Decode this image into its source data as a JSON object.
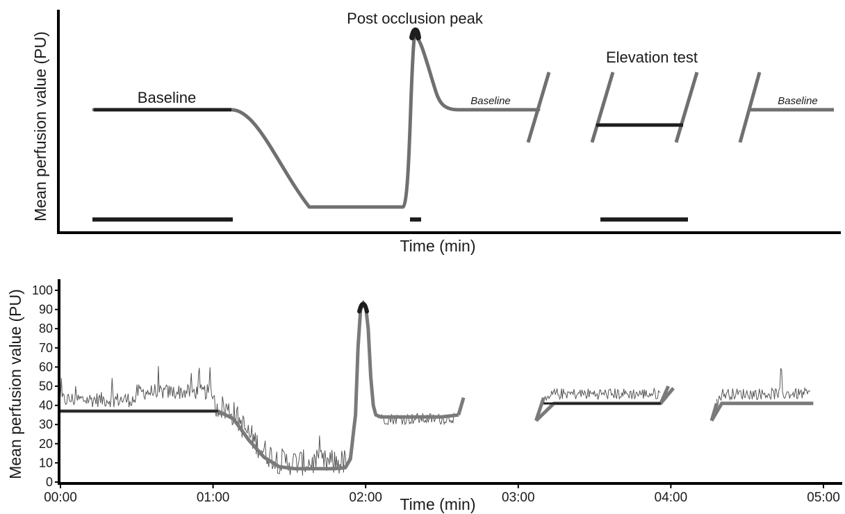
{
  "chart_data": [
    {
      "type": "line",
      "xlabel": "Time (min)",
      "ylabel": "Mean perfusion value (PU)",
      "annotations": {
        "baseline_main": "Baseline",
        "post_occlusion": "Post occlusion peak",
        "baseline_after_peak": "Baseline",
        "elevation": "Elevation test",
        "baseline_final": "Baseline"
      },
      "grid": false,
      "series": [
        {
          "values": []
        }
      ],
      "line_color": "#707070",
      "highlight_color": "#1e1e1e"
    },
    {
      "type": "line",
      "xlabel": "Time (min)",
      "ylabel": "Mean perfusion value (PU)",
      "x_tick_labels": [
        "00:00",
        "01:00",
        "02:00",
        "03:00",
        "04:00",
        "05:00"
      ],
      "x_ticks_sec": [
        0,
        60,
        120,
        180,
        240,
        300
      ],
      "y_tick_labels": [
        "0",
        "10",
        "20",
        "30",
        "40",
        "50",
        "60",
        "70",
        "80",
        "90",
        "100"
      ],
      "y_ticks": [
        0,
        10,
        20,
        30,
        40,
        50,
        60,
        70,
        80,
        90,
        100
      ],
      "xlim_sec": [
        0,
        302
      ],
      "ylim": [
        0,
        105
      ],
      "grid": false,
      "segments": [
        {
          "name": "occlusion",
          "x_sec": [
            0,
            15,
            30,
            45,
            62,
            68,
            74,
            80,
            86,
            92,
            98,
            104,
            108,
            112,
            114,
            116,
            117,
            118,
            119,
            120,
            121,
            122,
            123,
            124,
            126,
            130,
            140,
            150,
            156.5
          ],
          "y": [
            37,
            37,
            37,
            37,
            37,
            33,
            22,
            13,
            8,
            7,
            7,
            7,
            7,
            7.5,
            12,
            35,
            70,
            90,
            93,
            92,
            80,
            55,
            40,
            35,
            34,
            34,
            34,
            34,
            35
          ]
        },
        {
          "name": "elevation",
          "x_sec": [
            187,
            194,
            200,
            210,
            220,
            230,
            236,
            241
          ],
          "y": [
            32,
            41,
            41,
            41,
            41,
            41,
            41,
            49
          ]
        },
        {
          "name": "return",
          "x_sec": [
            256,
            260,
            270,
            280,
            290,
            296
          ],
          "y": [
            32,
            41,
            41,
            41,
            41,
            41
          ]
        }
      ],
      "baseline_levels": [
        {
          "x_sec": [
            0,
            62
          ],
          "y": 37
        },
        {
          "x_sec": [
            190,
            236
          ],
          "y": 41
        }
      ],
      "peak": {
        "x_sec": [
          117.5,
          120.5
        ],
        "y": 93
      },
      "line_color": "#7a7a7a",
      "trace_color": "#555555",
      "highlight_color": "#1e1e1e"
    }
  ]
}
